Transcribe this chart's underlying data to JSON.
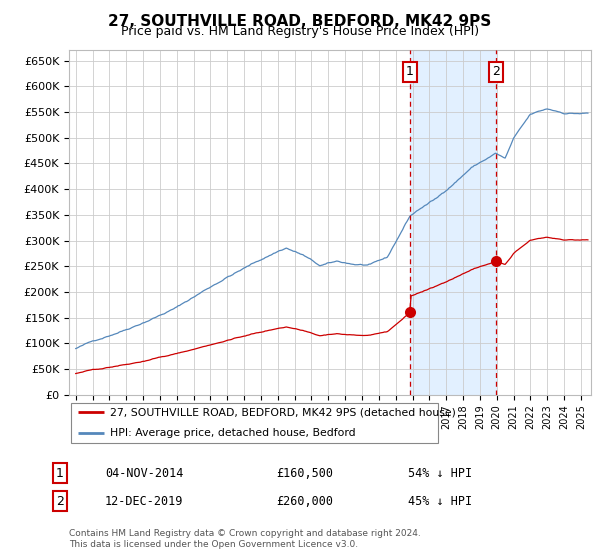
{
  "title": "27, SOUTHVILLE ROAD, BEDFORD, MK42 9PS",
  "subtitle": "Price paid vs. HM Land Registry's House Price Index (HPI)",
  "title_fontsize": 11,
  "subtitle_fontsize": 9,
  "ylim": [
    0,
    670000
  ],
  "yticks": [
    0,
    50000,
    100000,
    150000,
    200000,
    250000,
    300000,
    350000,
    400000,
    450000,
    500000,
    550000,
    600000,
    650000
  ],
  "ytick_labels": [
    "£0",
    "£50K",
    "£100K",
    "£150K",
    "£200K",
    "£250K",
    "£300K",
    "£350K",
    "£400K",
    "£450K",
    "£500K",
    "£550K",
    "£600K",
    "£650K"
  ],
  "sale1_date": 2014.84,
  "sale1_price": 160500,
  "sale2_date": 2019.95,
  "sale2_price": 260000,
  "line1_color": "#cc0000",
  "line2_color": "#5588bb",
  "shade_color": "#ddeeff",
  "vline_color": "#cc0000",
  "legend1": "27, SOUTHVILLE ROAD, BEDFORD, MK42 9PS (detached house)",
  "legend2": "HPI: Average price, detached house, Bedford",
  "annotation1": "04-NOV-2014",
  "annotation1_price": "£160,500",
  "annotation1_hpi": "54% ↓ HPI",
  "annotation2": "12-DEC-2019",
  "annotation2_price": "£260,000",
  "annotation2_hpi": "45% ↓ HPI",
  "footer": "Contains HM Land Registry data © Crown copyright and database right 2024.\nThis data is licensed under the Open Government Licence v3.0."
}
